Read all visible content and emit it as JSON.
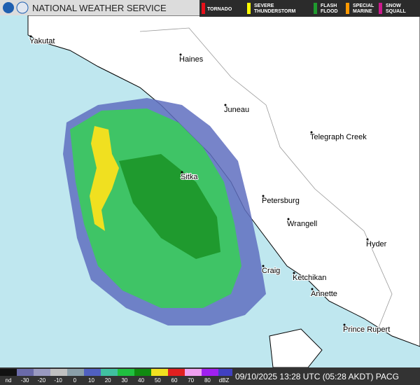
{
  "header": {
    "title": "NATIONAL WEATHER SERVICE"
  },
  "warnings": [
    {
      "label": "TORNADO",
      "color": "#e8101a"
    },
    {
      "label": "SEVERE THUNDERSTORM",
      "color": "#ffff00"
    },
    {
      "label": "FLASH FLOOD",
      "color": "#1f9a2e"
    },
    {
      "label": "SPECIAL MARINE",
      "color": "#ff9900"
    },
    {
      "label": "SNOW SQUALL",
      "color": "#cc1a8c"
    }
  ],
  "cities": [
    "Yakutat",
    "Haines",
    "Juneau",
    "Telegraph Creek",
    "Sitka",
    "Petersburg",
    "Wrangell",
    "Hyder",
    "Craig",
    "Ketchikan",
    "Annette",
    "Prince Rupert"
  ],
  "legend": {
    "labels": [
      "nd",
      "-30",
      "-20",
      "-10",
      "0",
      "10",
      "20",
      "30",
      "40",
      "50",
      "60",
      "70",
      "80",
      "dBZ"
    ]
  },
  "timestamp": "09/10/2025 13:28 UTC (05:28 AKDT) PACG"
}
